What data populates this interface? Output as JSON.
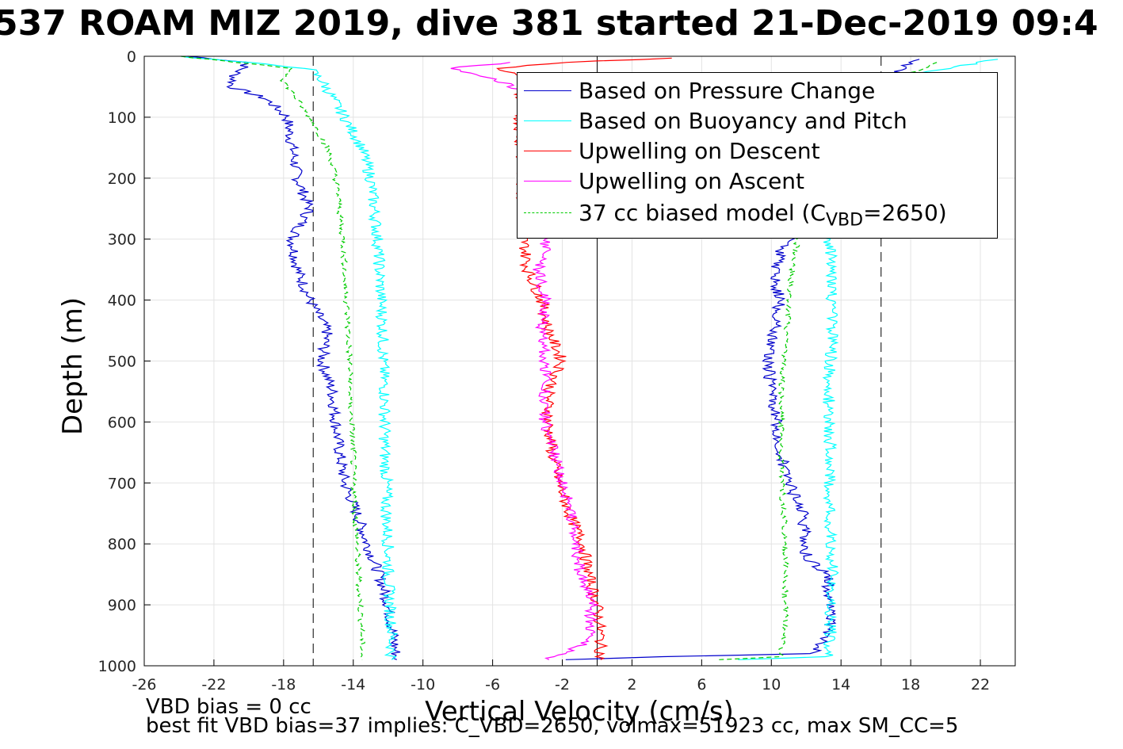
{
  "title": "537 ROAM MIZ 2019, dive 381 started 21-Dec-2019 09:4",
  "footer": {
    "line1": "VBD bias = 0 cc",
    "line2": "best fit VBD bias=37 implies: C_VBD=2650, volmax=51923 cc, max SM_CC=5"
  },
  "colors": {
    "pressure": "#0000cc",
    "buoyancy": "#00ffff",
    "descent": "#ff0000",
    "ascent": "#ff00ff",
    "model": "#00cc00"
  },
  "chart_data": {
    "type": "line",
    "title": "537 ROAM MIZ 2019, dive 381 started 21-Dec-2019 09:4",
    "xlabel": "Vertical Velocity (cm/s)",
    "ylabel": "Depth (m)",
    "xlim": [
      -26,
      24
    ],
    "ylim": [
      1000,
      0
    ],
    "y_reversed": true,
    "grid": true,
    "legend_position": "top-right",
    "xticks": [
      "-26",
      "-22",
      "-18",
      "-14",
      "-10",
      "-6",
      "-2",
      "2",
      "6",
      "10",
      "14",
      "18",
      "22"
    ],
    "yticks": [
      "0",
      "100",
      "200",
      "300",
      "400",
      "500",
      "600",
      "700",
      "800",
      "900",
      "1000"
    ],
    "reference_lines": [
      {
        "x": 0,
        "style": "solid"
      },
      {
        "x": -16.3,
        "style": "dashed"
      },
      {
        "x": 16.3,
        "style": "dashed"
      }
    ],
    "legend": [
      {
        "label": "Based on Pressure Change",
        "series": "pressure"
      },
      {
        "label": "Based on Buoyancy and Pitch",
        "series": "buoyancy"
      },
      {
        "label": "Upwelling on Descent",
        "series": "descent"
      },
      {
        "label": "Upwelling on Ascent",
        "series": "ascent"
      },
      {
        "label": "37 cc biased model (C",
        "sub": "VBD",
        "after": "=2650)",
        "series": "model"
      }
    ],
    "series": [
      {
        "key": "pressure",
        "name": "Based on Pressure Change",
        "color": "#0000cc",
        "style": "solid",
        "depth": [
          0,
          10,
          30,
          50,
          70,
          100,
          150,
          200,
          250,
          300,
          350,
          400,
          450,
          500,
          550,
          600,
          650,
          700,
          750,
          800,
          850,
          900,
          950,
          990
        ],
        "values": [
          -23.5,
          -20,
          -20.8,
          -21,
          -19,
          -17.8,
          -17.5,
          -17.2,
          -16.5,
          -17.5,
          -17.2,
          -16.5,
          -15.5,
          -15.8,
          -15.2,
          -15,
          -14.8,
          -14.5,
          -13.8,
          -13.2,
          -12.5,
          -12,
          -11.7,
          -11.5
        ]
      },
      {
        "key": "pressure-ascent",
        "name": "",
        "color": "#0000cc",
        "style": "solid",
        "depth": [
          990,
          985,
          980,
          950,
          900,
          850,
          820,
          800,
          750,
          700,
          650,
          600,
          550,
          500,
          450,
          400,
          370,
          340,
          310,
          300,
          250,
          200,
          150,
          100,
          50,
          20,
          5
        ],
        "values": [
          -2,
          4,
          12.5,
          13.3,
          13.4,
          13.2,
          12,
          12,
          11.8,
          11,
          10.5,
          10.3,
          10,
          9.8,
          10.2,
          10.5,
          10.2,
          10.3,
          10.7,
          11.5,
          12.5,
          13.5,
          14.5,
          15.5,
          16.5,
          17.5,
          18.5
        ]
      },
      {
        "key": "buoyancy",
        "name": "Based on Buoyancy and Pitch",
        "color": "#00ffff",
        "style": "solid",
        "depth": [
          0,
          20,
          40,
          100,
          150,
          200,
          250,
          300,
          350,
          400,
          450,
          500,
          550,
          600,
          650,
          700,
          750,
          800,
          850,
          900,
          950,
          990
        ],
        "values": [
          -24,
          -16.5,
          -15.8,
          -14.5,
          -13.5,
          -13,
          -12.8,
          -12.6,
          -12.5,
          -12.4,
          -12.3,
          -12.3,
          -12.2,
          -12.2,
          -12.2,
          -12.1,
          -12.1,
          -12,
          -12,
          -11.9,
          -11.8,
          -11.8
        ]
      },
      {
        "key": "buoyancy-ascent",
        "name": "",
        "color": "#00ffff",
        "style": "solid",
        "depth": [
          990,
          985,
          960,
          900,
          850,
          800,
          750,
          700,
          650,
          600,
          550,
          500,
          450,
          400,
          350,
          300,
          250,
          200,
          150,
          100,
          50,
          15,
          5
        ],
        "values": [
          8,
          13.2,
          13.4,
          13.4,
          13.5,
          13.4,
          13.3,
          13.3,
          13.4,
          13.3,
          13.3,
          13.4,
          13.5,
          13.5,
          13.5,
          13.3,
          13.2,
          13.3,
          13.5,
          14,
          15,
          21,
          23
        ]
      },
      {
        "key": "descent",
        "name": "Upwelling on Descent",
        "color": "#ff0000",
        "style": "solid",
        "depth": [
          3,
          10,
          20,
          40,
          60,
          300,
          350,
          400,
          450,
          500,
          550,
          600,
          650,
          700,
          750,
          800,
          850,
          900,
          950,
          990
        ],
        "values": [
          4.5,
          -2,
          -5.5,
          -4,
          -4.5,
          -4.2,
          -4,
          -3.2,
          -2.8,
          -2,
          -2.8,
          -2.8,
          -2.6,
          -2.2,
          -1.6,
          -0.8,
          -0.5,
          0,
          0.2,
          0.2
        ]
      },
      {
        "key": "ascent",
        "name": "Upwelling on Ascent",
        "color": "#ff00ff",
        "style": "solid",
        "depth": [
          990,
          980,
          960,
          900,
          850,
          800,
          750,
          700,
          650,
          600,
          550,
          500,
          450,
          400,
          370,
          350,
          320,
          300,
          60,
          35,
          20,
          10
        ],
        "values": [
          -3,
          -2,
          -0.5,
          -0.3,
          -1,
          -1.2,
          -1.5,
          -2,
          -2.5,
          -3,
          -3,
          -3,
          -3.2,
          -3,
          -3.2,
          -3.4,
          -3,
          -3,
          -4,
          -6,
          -8.5,
          -5
        ]
      },
      {
        "key": "model",
        "name": "37 cc biased model (CVBD=2650)",
        "color": "#00cc00",
        "style": "dashed",
        "depth": [
          0,
          20,
          40,
          100,
          150,
          200,
          250,
          300,
          350,
          400,
          450,
          500,
          550,
          600,
          650,
          700,
          750,
          800,
          850,
          900,
          950,
          990
        ],
        "values": [
          -24,
          -17.5,
          -18,
          -16.5,
          -15.5,
          -15,
          -14.8,
          -14.6,
          -14.5,
          -14.4,
          -14.3,
          -14.2,
          -14.2,
          -14.1,
          -14,
          -14,
          -13.9,
          -13.8,
          -13.7,
          -13.6,
          -13.5,
          -13.5
        ]
      },
      {
        "key": "model-ascent",
        "name": "",
        "color": "#00cc00",
        "style": "dashed",
        "depth": [
          990,
          985,
          950,
          900,
          850,
          800,
          750,
          700,
          650,
          600,
          550,
          500,
          450,
          400,
          350,
          300,
          250,
          200,
          150,
          100,
          50,
          10
        ],
        "values": [
          7,
          10.5,
          10.8,
          10.8,
          10.8,
          10.8,
          10.7,
          10.6,
          10.5,
          10.6,
          10.6,
          10.7,
          10.9,
          11,
          11.2,
          11.5,
          12,
          12.8,
          13.5,
          14.5,
          16,
          19.5
        ]
      }
    ]
  }
}
